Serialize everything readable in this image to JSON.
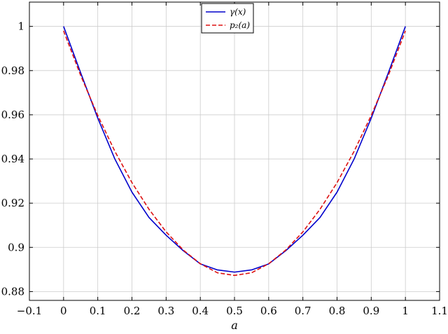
{
  "chart_data": {
    "type": "line",
    "title": "",
    "xlabel": "a",
    "ylabel": "",
    "xlim": [
      -0.1,
      1.1
    ],
    "ylim": [
      0.876,
      1.011
    ],
    "x_ticks": [
      -0.1,
      0,
      0.1,
      0.2,
      0.3,
      0.4,
      0.5,
      0.6,
      0.7,
      0.8,
      0.9,
      1,
      1.1
    ],
    "x_tick_labels": [
      "−0.1",
      "0",
      "0.1",
      "0.2",
      "0.3",
      "0.4",
      "0.5",
      "0.6",
      "0.7",
      "0.8",
      "0.9",
      "1",
      "1.1"
    ],
    "y_ticks": [
      0.88,
      0.9,
      0.92,
      0.94,
      0.96,
      0.98,
      1
    ],
    "y_tick_labels": [
      "0.88",
      "0.9",
      "0.92",
      "0.94",
      "0.96",
      "0.98",
      "1"
    ],
    "grid": true,
    "legend": "top-center",
    "series": [
      {
        "name": "γ(x)",
        "color": "#0000cc",
        "dash": "solid",
        "x": [
          0,
          0.05,
          0.1,
          0.15,
          0.2,
          0.25,
          0.3,
          0.35,
          0.4,
          0.45,
          0.5,
          0.55,
          0.6,
          0.65,
          0.7,
          0.75,
          0.8,
          0.85,
          0.9,
          0.95,
          1
        ],
        "y": [
          1.0,
          0.979,
          0.9585,
          0.94,
          0.925,
          0.9135,
          0.9055,
          0.8985,
          0.8925,
          0.8898,
          0.8888,
          0.8898,
          0.8925,
          0.8985,
          0.9055,
          0.9135,
          0.925,
          0.94,
          0.9585,
          0.979,
          1.0
        ]
      },
      {
        "name": "p₂(a)",
        "color": "#dd1111",
        "dash": "dashed",
        "x": [
          0,
          0.05,
          0.1,
          0.15,
          0.2,
          0.25,
          0.3,
          0.35,
          0.4,
          0.45,
          0.5,
          0.55,
          0.6,
          0.65,
          0.7,
          0.75,
          0.8,
          0.85,
          0.9,
          0.95,
          1
        ],
        "y": [
          0.998,
          0.9778,
          0.9597,
          0.9435,
          0.9293,
          0.9172,
          0.907,
          0.8988,
          0.8926,
          0.8885,
          0.8873,
          0.8885,
          0.8926,
          0.8988,
          0.907,
          0.9172,
          0.9293,
          0.9435,
          0.9597,
          0.9778,
          0.998
        ]
      }
    ]
  }
}
